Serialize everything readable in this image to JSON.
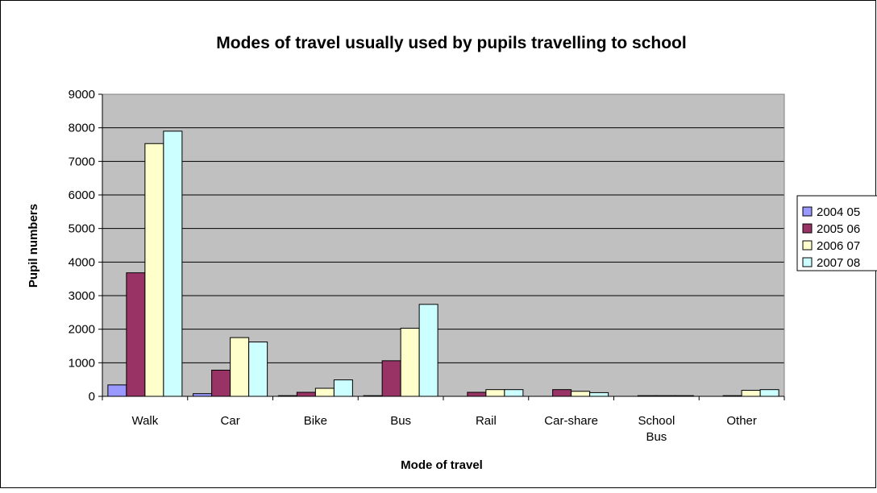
{
  "chart_data": {
    "type": "bar",
    "title": "Modes of travel usually used by pupils travelling to school",
    "xlabel": "Mode of travel",
    "ylabel": "Pupil numbers",
    "ylim": [
      0,
      9000
    ],
    "yticks": [
      0,
      1000,
      2000,
      3000,
      4000,
      5000,
      6000,
      7000,
      8000,
      9000
    ],
    "grid": true,
    "legend_position": "right",
    "categories": [
      "Walk",
      "Car",
      "Bike",
      "Bus",
      "Rail",
      "Car-share",
      "School Bus",
      "Other"
    ],
    "series": [
      {
        "name": "2004 05",
        "color": "#9999ff",
        "values": [
          340,
          80,
          20,
          20,
          0,
          0,
          0,
          0
        ]
      },
      {
        "name": "2005 06",
        "color": "#993366",
        "values": [
          3680,
          780,
          120,
          1060,
          120,
          200,
          20,
          20
        ]
      },
      {
        "name": "2006 07",
        "color": "#ffffcc",
        "values": [
          7530,
          1750,
          240,
          2030,
          200,
          150,
          20,
          180
        ]
      },
      {
        "name": "2007 08",
        "color": "#ccffff",
        "values": [
          7900,
          1620,
          490,
          2740,
          200,
          110,
          20,
          200
        ]
      }
    ],
    "colors": {
      "plot_background": "#c0c0c0",
      "gridline": "#000000",
      "bar_outline": "#000000"
    }
  }
}
